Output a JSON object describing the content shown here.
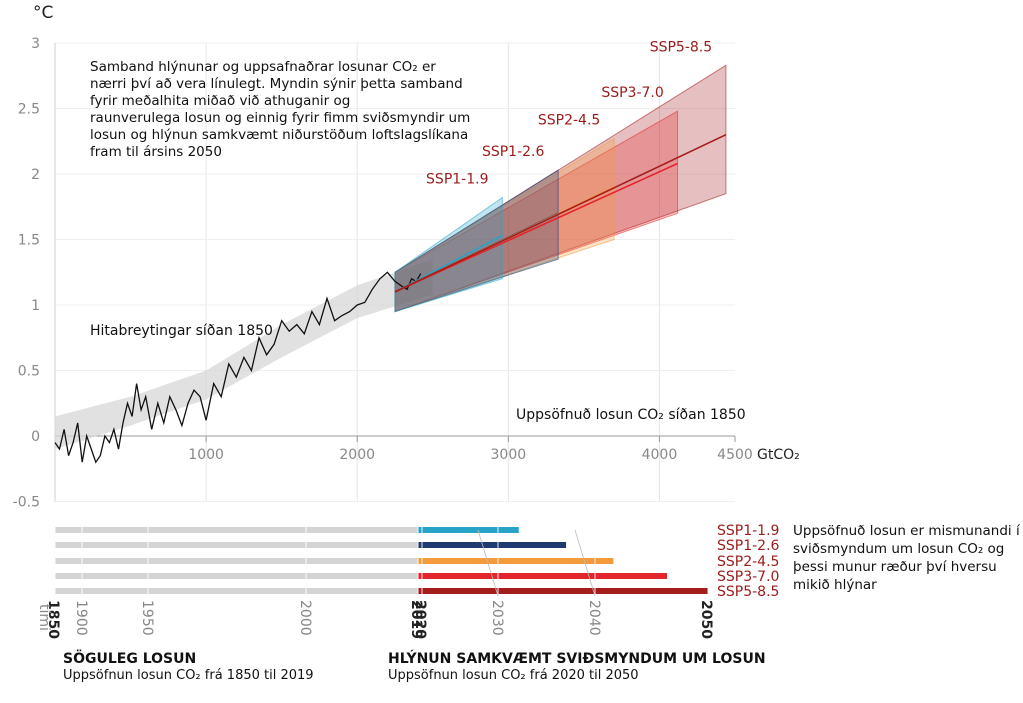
{
  "units": {
    "y": "°C",
    "x": "GtCO₂"
  },
  "intro_text": [
    "Samband hlýnunar og uppsafnaðrar losunar  CO₂ er",
    "nærri því að vera línulegt. Myndin sýnir þetta samband",
    "fyrir meðalhita miðað við athuganir og",
    "raunverulega losun og einnig fyrir fimm sviðsmyndir um",
    "losun  og hlýnun samkvæmt niðurstöðum loftslagslíkana",
    "fram til ársins 2050"
  ],
  "hist_label": "Hitabreytingar síðan 1850",
  "cumulative_label": "Uppsöfnuð losun CO₂ síðan 1850",
  "right_note": [
    "Uppsöfnuð losun er mismunandi í",
    "sviðsmyndum um losun CO₂ og",
    "þessi munur ræður því  hversu",
    "mikið hlýnar"
  ],
  "footer": {
    "left_title": "SÖGULEG LOSUN",
    "left_sub": "Uppsöfnun losun CO₂ frá 1850 til 2019",
    "right_title": "HLÝNUN SAMKVÆMT SVIÐSMYNDUM UM LOSUN",
    "right_sub": "Uppsöfnun losun CO₂ frá 2020 til 2050"
  },
  "timeline": {
    "label": "tími",
    "years": [
      "1850",
      "1900",
      "1950",
      "2000",
      "2019",
      "2020",
      "2030",
      "2040",
      "2050"
    ],
    "bold_years": [
      "1850",
      "2019",
      "2020",
      "2050"
    ]
  },
  "chart_data": {
    "type": "line",
    "xlabel": "GtCO₂",
    "ylabel": "°C",
    "xlim": [
      0,
      4500
    ],
    "ylim": [
      -0.5,
      3
    ],
    "x_ticks": [
      1000,
      2000,
      3000,
      4000,
      4500
    ],
    "y_ticks": [
      -0.5,
      0,
      0.5,
      1,
      1.5,
      2,
      2.5,
      3
    ],
    "y_tick_labels": [
      "-0.5",
      "0",
      "0.5",
      "1",
      "1.5",
      "2",
      "2.5",
      "3"
    ],
    "grid": true,
    "observed": {
      "x": [
        0,
        30,
        60,
        90,
        120,
        150,
        180,
        210,
        240,
        270,
        300,
        330,
        360,
        390,
        420,
        450,
        480,
        510,
        540,
        570,
        600,
        640,
        680,
        720,
        760,
        800,
        840,
        880,
        920,
        960,
        1000,
        1050,
        1100,
        1150,
        1200,
        1250,
        1300,
        1350,
        1400,
        1450,
        1500,
        1550,
        1600,
        1650,
        1700,
        1750,
        1800,
        1850,
        1900,
        1950,
        2000,
        2050,
        2100,
        2150,
        2200,
        2250,
        2300,
        2330,
        2360,
        2390,
        2420
      ],
      "y": [
        -0.05,
        -0.1,
        0.05,
        -0.15,
        -0.05,
        0.1,
        -0.2,
        0.0,
        -0.1,
        -0.2,
        -0.15,
        0.0,
        -0.05,
        0.05,
        -0.1,
        0.1,
        0.25,
        0.15,
        0.4,
        0.2,
        0.3,
        0.05,
        0.25,
        0.1,
        0.3,
        0.2,
        0.08,
        0.25,
        0.35,
        0.3,
        0.12,
        0.4,
        0.3,
        0.55,
        0.45,
        0.6,
        0.5,
        0.75,
        0.62,
        0.7,
        0.88,
        0.8,
        0.85,
        0.78,
        0.95,
        0.85,
        1.05,
        0.88,
        0.92,
        0.95,
        1.0,
        1.02,
        1.12,
        1.2,
        1.25,
        1.18,
        1.14,
        1.12,
        1.2,
        1.18,
        1.24
      ]
    },
    "observed_band": {
      "x": [
        0,
        500,
        1000,
        1500,
        2000,
        2500
      ],
      "lower": [
        -0.1,
        0.08,
        0.28,
        0.6,
        0.9,
        1.08
      ],
      "upper": [
        0.15,
        0.3,
        0.5,
        0.85,
        1.15,
        1.35
      ]
    },
    "series": [
      {
        "name": "SSP1-1.9",
        "color": "#28a3c8",
        "x": [
          2250,
          2960
        ],
        "center": [
          1.1,
          1.53
        ],
        "band_lower": [
          0.95,
          1.2
        ],
        "band_upper": [
          1.25,
          1.82
        ]
      },
      {
        "name": "SSP1-2.6",
        "color": "#1e3a6e",
        "x": [
          2250,
          3330
        ],
        "center": [
          1.1,
          1.7
        ],
        "band_lower": [
          0.95,
          1.35
        ],
        "band_upper": [
          1.25,
          2.03
        ]
      },
      {
        "name": "SSP2-4.5",
        "color": "#f39a3d",
        "x": [
          2250,
          3700
        ],
        "center": [
          1.1,
          1.9
        ],
        "band_lower": [
          0.95,
          1.5
        ],
        "band_upper": [
          1.25,
          2.27
        ]
      },
      {
        "name": "SSP3-7.0",
        "color": "#e3262b",
        "x": [
          2250,
          4120
        ],
        "center": [
          1.1,
          2.08
        ],
        "band_lower": [
          0.95,
          1.7
        ],
        "band_upper": [
          1.25,
          2.48
        ]
      },
      {
        "name": "SSP5-8.5",
        "color": "#a51c1c",
        "x": [
          2250,
          4440
        ],
        "center": [
          1.1,
          2.3
        ],
        "band_lower": [
          0.95,
          1.85
        ],
        "band_upper": [
          1.25,
          2.83
        ]
      }
    ]
  },
  "scenario_bars": [
    {
      "name": "SSP1-1.9",
      "color": "#28a3c8",
      "end_year": 2050,
      "end_value": 2960
    },
    {
      "name": "SSP1-2.6",
      "color": "#1e3a6e",
      "end_year": 2050,
      "end_value": 3330
    },
    {
      "name": "SSP2-4.5",
      "color": "#f39a3d",
      "end_year": 2050,
      "end_value": 3700
    },
    {
      "name": "SSP3-7.0",
      "color": "#e3262b",
      "end_year": 2050,
      "end_value": 4120
    },
    {
      "name": "SSP5-8.5",
      "color": "#a51c1c",
      "end_year": 2050,
      "end_value": 4440
    }
  ]
}
